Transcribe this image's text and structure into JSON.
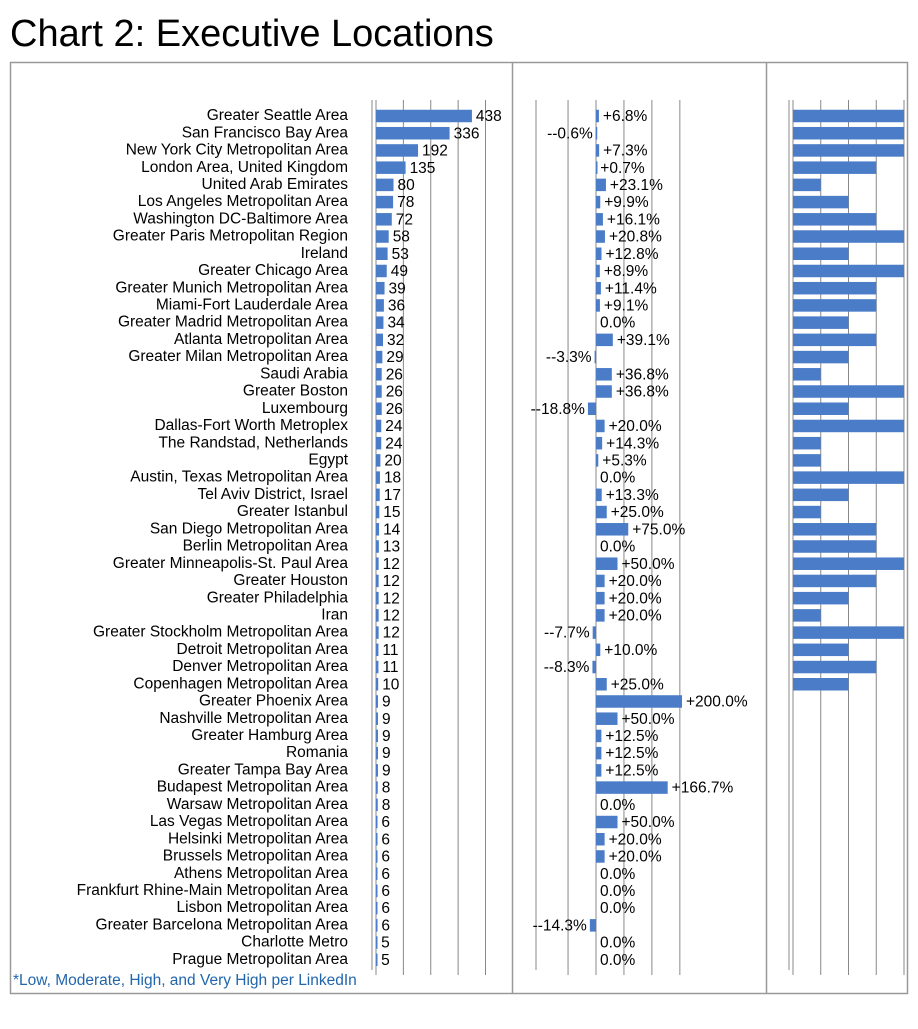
{
  "chart_data": [
    {
      "type": "bar",
      "orientation": "horizontal",
      "title": "Chart 2: Executive Locations",
      "categories": [
        "Greater Seattle Area",
        "San Francisco Bay Area",
        "New York City Metropolitan Area",
        "London Area, United Kingdom",
        "United Arab Emirates",
        "Los Angeles Metropolitan Area",
        "Washington DC-Baltimore Area",
        "Greater Paris Metropolitan Region",
        "Ireland",
        "Greater Chicago Area",
        "Greater Munich Metropolitan Area",
        "Miami-Fort Lauderdale Area",
        "Greater Madrid Metropolitan Area",
        "Atlanta Metropolitan Area",
        "Greater Milan Metropolitan Area",
        "Saudi Arabia",
        "Greater Boston",
        "Luxembourg",
        "Dallas-Fort Worth Metroplex",
        "The Randstad, Netherlands",
        "Egypt",
        "Austin, Texas Metropolitan Area",
        "Tel Aviv District, Israel",
        "Greater Istanbul",
        "San Diego Metropolitan Area",
        "Berlin Metropolitan Area",
        "Greater Minneapolis-St. Paul Area",
        "Greater Houston",
        "Greater Philadelphia",
        "Iran",
        "Greater Stockholm Metropolitan Area",
        "Detroit Metropolitan Area",
        "Denver Metropolitan Area",
        "Copenhagen Metropolitan Area",
        "Greater Phoenix Area",
        "Nashville Metropolitan Area",
        "Greater Hamburg Area",
        "Romania",
        "Greater Tampa Bay Area",
        "Budapest Metropolitan Area",
        "Warsaw Metropolitan Area",
        "Las Vegas Metropolitan Area",
        "Helsinki Metropolitan Area",
        "Brussels Metropolitan Area",
        "Athens Metropolitan Area",
        "Frankfurt Rhine-Main Metropolitan Area",
        "Lisbon Metropolitan Area",
        "Greater Barcelona Metropolitan Area",
        "Charlotte Metro",
        "Prague Metropolitan Area"
      ],
      "values": [
        438,
        336,
        192,
        135,
        80,
        78,
        72,
        58,
        53,
        49,
        39,
        36,
        34,
        32,
        29,
        26,
        26,
        26,
        24,
        24,
        20,
        18,
        17,
        15,
        14,
        13,
        12,
        12,
        12,
        12,
        12,
        11,
        11,
        10,
        9,
        9,
        9,
        9,
        9,
        8,
        8,
        6,
        6,
        6,
        6,
        6,
        6,
        6,
        5,
        5
      ],
      "color": "#4a7cc7",
      "xlim": [
        0,
        500
      ],
      "xticks": [
        0,
        125,
        250,
        375,
        500
      ]
    },
    {
      "type": "bar",
      "orientation": "horizontal",
      "values": [
        6.8,
        -0.6,
        7.3,
        0.7,
        23.1,
        9.9,
        16.1,
        20.8,
        12.8,
        8.9,
        11.4,
        9.1,
        0.0,
        39.1,
        -3.3,
        36.8,
        36.8,
        -18.8,
        20.0,
        14.3,
        5.3,
        0.0,
        13.3,
        25.0,
        75.0,
        0.0,
        50.0,
        20.0,
        20.0,
        20.0,
        -7.7,
        10.0,
        -8.3,
        25.0,
        200.0,
        50.0,
        12.5,
        12.5,
        12.5,
        166.7,
        0.0,
        50.0,
        20.0,
        20.0,
        0.0,
        0.0,
        0.0,
        -14.3,
        0.0,
        0.0
      ],
      "value_labels": [
        "+6.8%",
        "--0.6%",
        "+7.3%",
        "+0.7%",
        "+23.1%",
        "+9.9%",
        "+16.1%",
        "+20.8%",
        "+12.8%",
        "+8.9%",
        "+11.4%",
        "+9.1%",
        "0.0%",
        "+39.1%",
        "--3.3%",
        "+36.8%",
        "+36.8%",
        "--18.8%",
        "+20.0%",
        "+14.3%",
        "+5.3%",
        "0.0%",
        "+13.3%",
        "+25.0%",
        "+75.0%",
        "0.0%",
        "+50.0%",
        "+20.0%",
        "+20.0%",
        "+20.0%",
        "--7.7%",
        "+10.0%",
        "--8.3%",
        "+25.0%",
        "+200.0%",
        "+50.0%",
        "+12.5%",
        "+12.5%",
        "+12.5%",
        "+166.7%",
        "0.0%",
        "+50.0%",
        "+20.0%",
        "+20.0%",
        "0.0%",
        "0.0%",
        "0.0%",
        "--14.3%",
        "0.0%",
        "0.0%"
      ],
      "color": "#4a7cc7",
      "xlim": [
        -130,
        230
      ],
      "xticks": [
        -65,
        0,
        65,
        130,
        195
      ]
    },
    {
      "type": "bar",
      "orientation": "horizontal",
      "values": [
        4,
        4,
        4,
        3,
        1,
        2,
        3,
        4,
        2,
        4,
        3,
        3,
        2,
        3,
        2,
        1,
        4,
        2,
        4,
        1,
        1,
        4,
        2,
        1,
        3,
        3,
        4,
        3,
        2,
        1,
        4,
        2,
        3,
        2,
        null,
        null,
        null,
        null,
        null,
        null,
        null,
        null,
        null,
        null,
        null,
        null,
        null,
        null,
        null,
        null
      ],
      "color": "#4a7cc7",
      "xlim": [
        0,
        4
      ],
      "xticks": [
        0,
        1,
        2,
        3,
        4
      ]
    }
  ],
  "note": "*Low, Moderate, High, and Very High per LinkedIn"
}
